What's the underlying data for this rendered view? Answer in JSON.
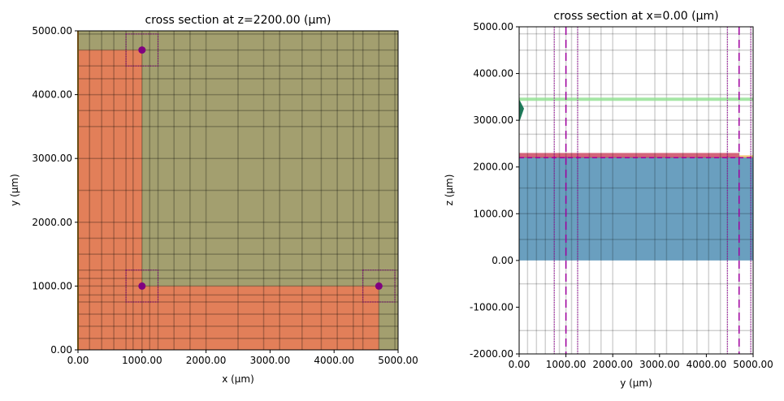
{
  "chart_data": [
    {
      "type": "diagram-cross-section",
      "title": "cross section at z=2200.00 (μm)",
      "xlabel": "x (μm)",
      "ylabel": "y (μm)",
      "xlim": [
        0,
        5000
      ],
      "ylim": [
        0,
        5000
      ],
      "xticks": [
        "0.00",
        "1000.00",
        "2000.00",
        "3000.00",
        "4000.00",
        "5000.00"
      ],
      "yticks": [
        "0.00",
        "1000.00",
        "2000.00",
        "3000.00",
        "4000.00",
        "5000.00"
      ],
      "background_color": "#a39f6f",
      "regions": [
        {
          "color": "#e27f59",
          "x": [
            0,
            1000
          ],
          "y": [
            0,
            4700
          ]
        },
        {
          "color": "#e27f59",
          "x": [
            0,
            4700
          ],
          "y": [
            0,
            1000
          ]
        }
      ],
      "points": [
        {
          "x": 1000,
          "y": 4700
        },
        {
          "x": 1000,
          "y": 1000
        },
        {
          "x": 4700,
          "y": 1000
        }
      ],
      "point_color": "#800080",
      "box_halfwidth": 250,
      "grid_x": [
        180,
        370,
        560,
        750,
        860,
        1000,
        1120,
        1250,
        1500,
        1750,
        2000,
        2500,
        2900,
        3150,
        3500,
        3800,
        4050,
        4300,
        4450,
        4700,
        4950
      ],
      "grid_y": [
        180,
        370,
        560,
        750,
        860,
        1000,
        1120,
        1250,
        1500,
        1750,
        2000,
        2500,
        3000,
        3500,
        3750,
        4000,
        4250,
        4450,
        4700,
        4950
      ]
    },
    {
      "type": "diagram-cross-section",
      "title": "cross section at x=0.00 (μm)",
      "xlabel": "y (μm)",
      "ylabel": "z (μm)",
      "xlim": [
        0,
        5000
      ],
      "ylim": [
        -2000,
        5000
      ],
      "xticks": [
        "0.00",
        "1000.00",
        "2000.00",
        "3000.00",
        "4000.00",
        "5000.00"
      ],
      "yticks": [
        "-2000.00",
        "-1000.00",
        "0.00",
        "1000.00",
        "2000.00",
        "3000.00",
        "4000.00",
        "5000.00"
      ],
      "regions": [
        {
          "color": "#6a9fbf",
          "x": [
            0,
            5000
          ],
          "z": [
            0,
            2200
          ]
        },
        {
          "color": "#d4647a",
          "x": [
            0,
            4700
          ],
          "z": [
            2200,
            2300
          ]
        },
        {
          "color": "#f5c77e",
          "x": [
            4700,
            5000
          ],
          "z": [
            2200,
            2250
          ]
        }
      ],
      "green_line_z": 3450,
      "dashed_z": 2200,
      "dashed_y": [
        1000,
        4700
      ],
      "dotted_y": [
        750,
        1250,
        4450,
        4950
      ],
      "grid_x": [
        180,
        370,
        560,
        750,
        860,
        1000,
        1120,
        1250,
        1500,
        1750,
        2000,
        2500,
        2900,
        3150,
        3500,
        3800,
        4050,
        4300,
        4450,
        4700,
        4950
      ],
      "grid_z": [
        -1500,
        -500,
        450,
        1000,
        1550,
        2200,
        2700,
        3000,
        3300,
        3550,
        4000,
        4500,
        4850
      ]
    }
  ]
}
